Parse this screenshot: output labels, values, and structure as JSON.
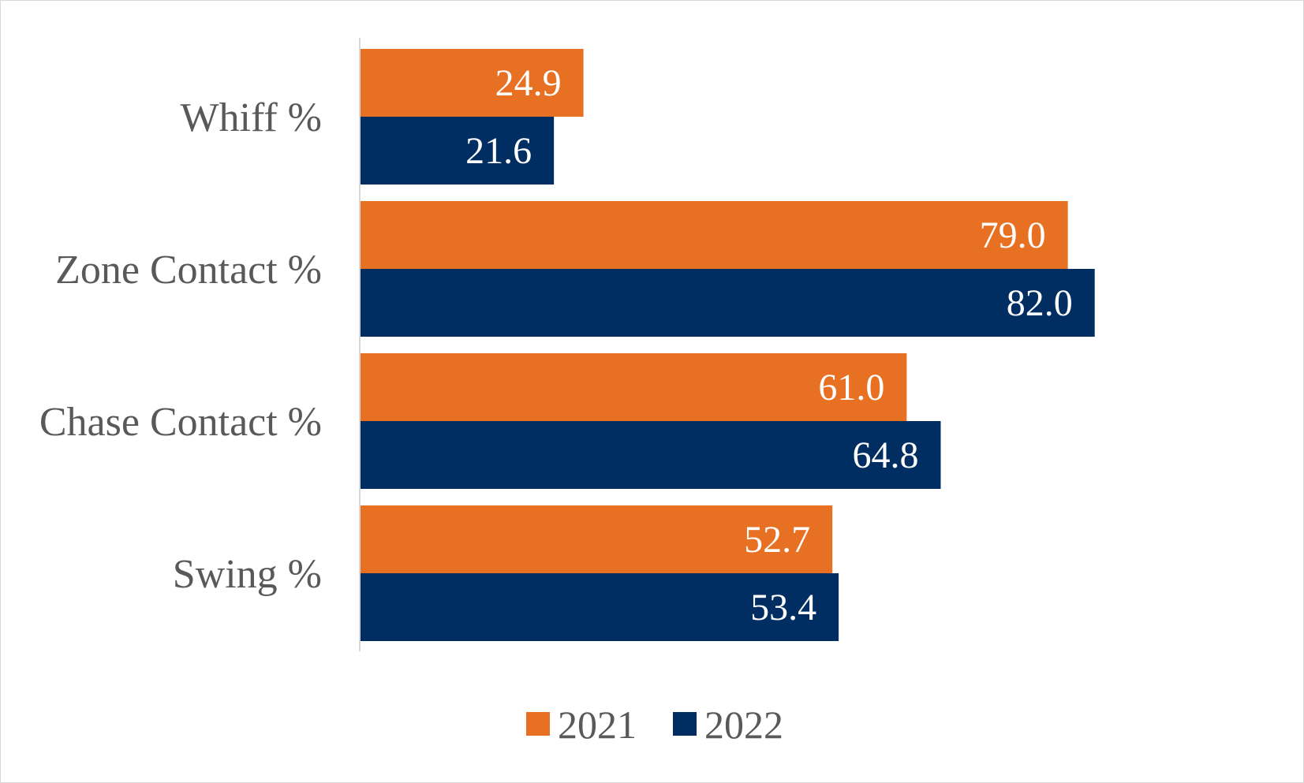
{
  "chart_data": {
    "type": "bar",
    "orientation": "horizontal",
    "title": "",
    "categories": [
      "Whiff %",
      "Zone Contact %",
      "Chase Contact %",
      "Swing %"
    ],
    "series": [
      {
        "name": "2021",
        "color": "#E87022",
        "values": [
          24.9,
          79.0,
          61.0,
          52.7
        ],
        "labels": [
          "24.9",
          "79.0",
          "61.0",
          "52.7"
        ]
      },
      {
        "name": "2022",
        "color": "#002D62",
        "values": [
          21.6,
          82.0,
          64.8,
          53.4
        ],
        "labels": [
          "21.6",
          "82.0",
          "64.8",
          "53.4"
        ]
      }
    ],
    "xlim": [
      0,
      100
    ],
    "grid": false,
    "legend_position": "bottom",
    "axis_color": "#d9d9d9"
  }
}
